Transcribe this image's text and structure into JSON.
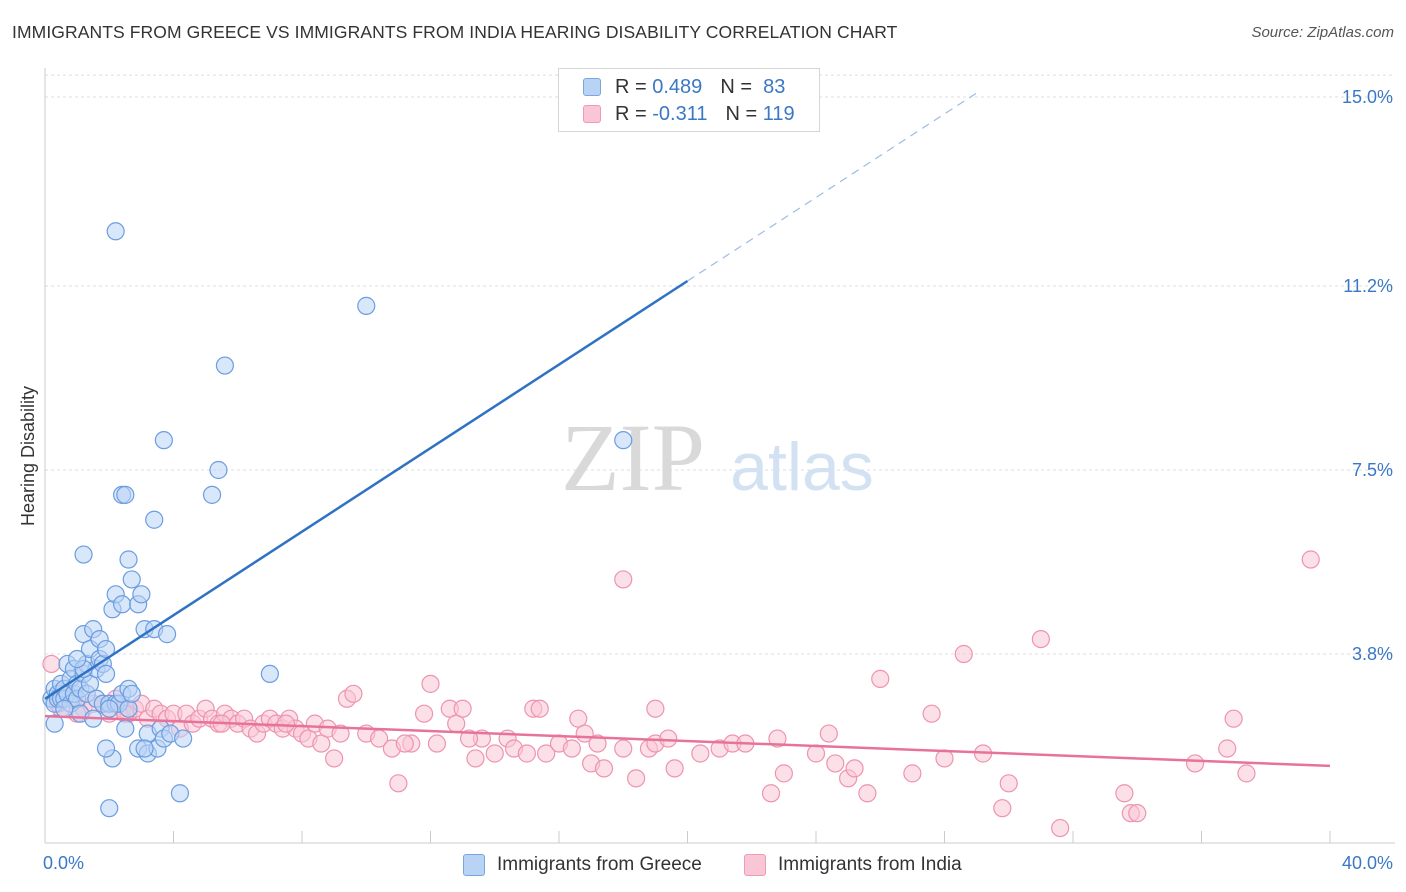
{
  "title": "IMMIGRANTS FROM GREECE VS IMMIGRANTS FROM INDIA HEARING DISABILITY CORRELATION CHART",
  "source": "Source: ZipAtlas.com",
  "watermark": {
    "zip": "ZIP",
    "atlas": "atlas"
  },
  "legend": {
    "greece": {
      "r_label": "R =",
      "r_value": "0.489",
      "n_label": "N =",
      "n_value": "83"
    },
    "india": {
      "r_label": "R =",
      "r_value": "-0.311",
      "n_label": "N =",
      "n_value": "119"
    }
  },
  "colors": {
    "greece_fill": "#b9d3f5",
    "greece_stroke": "#6b9de0",
    "greece_line": "#2f72c4",
    "india_fill": "#f9c6d6",
    "india_stroke": "#ee93b1",
    "india_line": "#e8739a",
    "axis_label": "#3a78c6",
    "grid": "#dddddd"
  },
  "chart_data": {
    "type": "scatter",
    "title": "IMMIGRANTS FROM GREECE VS IMMIGRANTS FROM INDIA HEARING DISABILITY CORRELATION CHART",
    "xlabel": "",
    "ylabel": "Hearing Disability",
    "xlim": [
      0,
      40
    ],
    "ylim": [
      0,
      15.5
    ],
    "x_tick_labels": [
      "0.0%",
      "40.0%"
    ],
    "y_ticks": [
      3.8,
      7.5,
      11.2,
      15.0
    ],
    "y_tick_labels": [
      "3.8%",
      "7.5%",
      "11.2%",
      "15.0%"
    ],
    "grid": true,
    "legend_position": "top-center",
    "series": [
      {
        "name": "Immigrants from Greece",
        "r": 0.489,
        "n": 83,
        "trend": {
          "x0": 0.0,
          "y0": 2.9,
          "x1": 20.0,
          "y1": 11.3,
          "dash_to_x": 29.0
        },
        "points": [
          [
            0.2,
            2.9
          ],
          [
            0.3,
            3.1
          ],
          [
            0.3,
            2.8
          ],
          [
            0.4,
            3.0
          ],
          [
            0.4,
            2.9
          ],
          [
            0.5,
            3.2
          ],
          [
            0.5,
            2.9
          ],
          [
            0.6,
            3.1
          ],
          [
            0.6,
            2.9
          ],
          [
            0.7,
            3.6
          ],
          [
            0.7,
            3.0
          ],
          [
            0.8,
            3.3
          ],
          [
            0.8,
            2.8
          ],
          [
            0.9,
            3.5
          ],
          [
            0.9,
            3.0
          ],
          [
            1.0,
            3.2
          ],
          [
            1.0,
            2.9
          ],
          [
            1.1,
            3.1
          ],
          [
            1.1,
            2.6
          ],
          [
            1.2,
            4.2
          ],
          [
            1.2,
            3.4
          ],
          [
            1.3,
            3.6
          ],
          [
            1.3,
            3.0
          ],
          [
            1.4,
            3.9
          ],
          [
            1.4,
            3.2
          ],
          [
            1.5,
            4.3
          ],
          [
            1.5,
            2.5
          ],
          [
            1.6,
            3.5
          ],
          [
            1.6,
            2.9
          ],
          [
            1.7,
            4.1
          ],
          [
            1.7,
            3.7
          ],
          [
            1.8,
            3.6
          ],
          [
            1.8,
            2.8
          ],
          [
            1.9,
            3.9
          ],
          [
            1.9,
            3.4
          ],
          [
            2.0,
            2.8
          ],
          [
            2.1,
            4.7
          ],
          [
            2.1,
            1.7
          ],
          [
            2.2,
            5.0
          ],
          [
            2.2,
            2.8
          ],
          [
            2.3,
            2.8
          ],
          [
            2.0,
            2.7
          ],
          [
            1.9,
            1.9
          ],
          [
            2.4,
            3.0
          ],
          [
            2.5,
            2.3
          ],
          [
            2.6,
            3.1
          ],
          [
            2.6,
            2.7
          ],
          [
            2.7,
            3.0
          ],
          [
            2.0,
            0.7
          ],
          [
            2.7,
            5.3
          ],
          [
            2.6,
            5.7
          ],
          [
            2.4,
            4.8
          ],
          [
            2.9,
            1.9
          ],
          [
            2.9,
            4.8
          ],
          [
            3.0,
            5.0
          ],
          [
            3.1,
            4.3
          ],
          [
            3.2,
            2.2
          ],
          [
            3.2,
            1.8
          ],
          [
            3.4,
            4.3
          ],
          [
            3.5,
            1.9
          ],
          [
            3.6,
            2.3
          ],
          [
            3.7,
            2.1
          ],
          [
            3.8,
            4.2
          ],
          [
            3.9,
            2.2
          ],
          [
            3.1,
            1.9
          ],
          [
            2.4,
            7.0
          ],
          [
            2.5,
            7.0
          ],
          [
            3.4,
            6.5
          ],
          [
            3.7,
            8.1
          ],
          [
            1.2,
            5.8
          ],
          [
            4.3,
            2.1
          ],
          [
            5.2,
            7.0
          ],
          [
            5.4,
            7.5
          ],
          [
            5.6,
            9.6
          ],
          [
            7.0,
            3.4
          ],
          [
            10.0,
            10.8
          ],
          [
            18.0,
            8.1
          ],
          [
            1.2,
            3.5
          ],
          [
            0.3,
            2.4
          ],
          [
            0.6,
            2.7
          ],
          [
            1.0,
            3.7
          ],
          [
            4.2,
            1.0
          ],
          [
            2.2,
            12.3
          ]
        ]
      },
      {
        "name": "Immigrants from India",
        "r": -0.311,
        "n": 119,
        "trend": {
          "x0": 0.0,
          "y0": 2.55,
          "x1": 40.0,
          "y1": 1.55
        },
        "points": [
          [
            0.2,
            3.6
          ],
          [
            0.5,
            2.7
          ],
          [
            0.9,
            2.9
          ],
          [
            1.2,
            2.7
          ],
          [
            1.5,
            2.8
          ],
          [
            1.8,
            2.8
          ],
          [
            2.0,
            2.6
          ],
          [
            2.2,
            2.9
          ],
          [
            2.4,
            2.7
          ],
          [
            2.6,
            2.6
          ],
          [
            2.8,
            2.7
          ],
          [
            3.0,
            2.8
          ],
          [
            3.2,
            2.5
          ],
          [
            3.4,
            2.7
          ],
          [
            3.6,
            2.6
          ],
          [
            3.8,
            2.5
          ],
          [
            4.0,
            2.6
          ],
          [
            4.2,
            2.3
          ],
          [
            4.4,
            2.6
          ],
          [
            4.6,
            2.4
          ],
          [
            4.8,
            2.5
          ],
          [
            5.0,
            2.7
          ],
          [
            5.2,
            2.5
          ],
          [
            5.4,
            2.4
          ],
          [
            5.6,
            2.6
          ],
          [
            5.8,
            2.5
          ],
          [
            6.0,
            2.4
          ],
          [
            6.2,
            2.5
          ],
          [
            6.4,
            2.3
          ],
          [
            6.6,
            2.2
          ],
          [
            6.8,
            2.4
          ],
          [
            7.0,
            2.5
          ],
          [
            7.2,
            2.4
          ],
          [
            7.4,
            2.3
          ],
          [
            7.6,
            2.5
          ],
          [
            7.8,
            2.3
          ],
          [
            8.0,
            2.2
          ],
          [
            8.2,
            2.1
          ],
          [
            8.4,
            2.4
          ],
          [
            8.6,
            2.0
          ],
          [
            8.8,
            2.3
          ],
          [
            9.0,
            1.7
          ],
          [
            9.2,
            2.2
          ],
          [
            9.4,
            2.9
          ],
          [
            9.6,
            3.0
          ],
          [
            10.0,
            2.2
          ],
          [
            10.4,
            2.1
          ],
          [
            10.8,
            1.9
          ],
          [
            11.0,
            1.2
          ],
          [
            11.4,
            2.0
          ],
          [
            11.8,
            2.6
          ],
          [
            12.0,
            3.2
          ],
          [
            12.2,
            2.0
          ],
          [
            12.6,
            2.7
          ],
          [
            12.8,
            2.4
          ],
          [
            13.0,
            2.7
          ],
          [
            13.4,
            1.7
          ],
          [
            13.6,
            2.1
          ],
          [
            14.0,
            1.8
          ],
          [
            14.4,
            2.1
          ],
          [
            14.6,
            1.9
          ],
          [
            15.0,
            1.8
          ],
          [
            15.2,
            2.7
          ],
          [
            15.6,
            1.8
          ],
          [
            16.0,
            2.0
          ],
          [
            16.4,
            1.9
          ],
          [
            16.6,
            2.5
          ],
          [
            16.8,
            2.2
          ],
          [
            17.0,
            1.6
          ],
          [
            17.2,
            2.0
          ],
          [
            17.4,
            1.5
          ],
          [
            18.0,
            1.9
          ],
          [
            18.4,
            1.3
          ],
          [
            18.8,
            1.9
          ],
          [
            19.0,
            2.0
          ],
          [
            19.4,
            2.1
          ],
          [
            19.6,
            1.5
          ],
          [
            20.4,
            1.8
          ],
          [
            21.0,
            1.9
          ],
          [
            21.4,
            2.0
          ],
          [
            21.8,
            2.0
          ],
          [
            22.6,
            1.0
          ],
          [
            22.8,
            2.1
          ],
          [
            23.0,
            1.4
          ],
          [
            24.0,
            1.8
          ],
          [
            24.4,
            2.2
          ],
          [
            24.6,
            1.6
          ],
          [
            25.0,
            1.3
          ],
          [
            25.2,
            1.5
          ],
          [
            25.6,
            1.0
          ],
          [
            26.0,
            3.3
          ],
          [
            27.0,
            1.4
          ],
          [
            27.6,
            2.6
          ],
          [
            28.0,
            1.7
          ],
          [
            28.6,
            3.8
          ],
          [
            29.2,
            1.8
          ],
          [
            29.8,
            0.7
          ],
          [
            30.0,
            1.2
          ],
          [
            31.0,
            4.1
          ],
          [
            31.6,
            0.3
          ],
          [
            33.6,
            1.0
          ],
          [
            33.8,
            0.6
          ],
          [
            34.0,
            0.6
          ],
          [
            35.8,
            1.6
          ],
          [
            36.8,
            1.9
          ],
          [
            37.0,
            2.5
          ],
          [
            37.4,
            1.4
          ],
          [
            39.4,
            5.7
          ],
          [
            18.0,
            5.3
          ],
          [
            0.7,
            3.0
          ],
          [
            0.4,
            2.8
          ],
          [
            1.0,
            2.6
          ],
          [
            2.5,
            2.6
          ],
          [
            5.5,
            2.4
          ],
          [
            7.5,
            2.4
          ],
          [
            15.4,
            2.7
          ],
          [
            19.0,
            2.7
          ],
          [
            11.2,
            2.0
          ],
          [
            13.2,
            2.1
          ]
        ]
      }
    ]
  }
}
